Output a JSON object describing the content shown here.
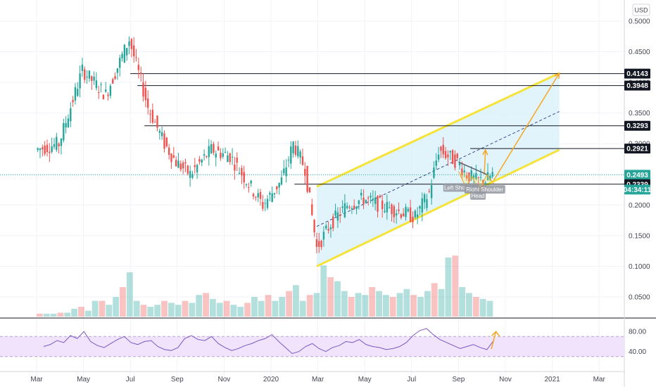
{
  "chart_data": {
    "type": "candlestick",
    "currency": "USD",
    "y_axis": {
      "min": 0.0,
      "max": 0.53,
      "ticks": [
        "0.5000",
        "0.4500",
        "0.4000",
        "0.3500",
        "0.3000",
        "0.2500",
        "0.2000",
        "0.1500",
        "0.1000",
        "0.0500"
      ],
      "tick_values": [
        0.5,
        0.45,
        0.4,
        0.35,
        0.3,
        0.25,
        0.2,
        0.15,
        0.1,
        0.05
      ]
    },
    "x_axis": {
      "labels": [
        "Mar",
        "May",
        "Jul",
        "Sep",
        "Nov",
        "2020",
        "Mar",
        "May",
        "Jul",
        "Sep",
        "Nov",
        "2021",
        "Mar"
      ],
      "label_months": [
        0,
        2,
        4,
        6,
        8,
        10,
        12,
        14,
        16,
        18,
        20,
        22,
        24
      ]
    },
    "price_path": [
      [
        0,
        0.29
      ],
      [
        1,
        0.3
      ],
      [
        2,
        0.42
      ],
      [
        3,
        0.38
      ],
      [
        4,
        0.47
      ],
      [
        4.8,
        0.36
      ],
      [
        5.5,
        0.3
      ],
      [
        6,
        0.27
      ],
      [
        6.6,
        0.25
      ],
      [
        7.5,
        0.29
      ],
      [
        8.3,
        0.28
      ],
      [
        9,
        0.24
      ],
      [
        9.7,
        0.2
      ],
      [
        10.5,
        0.24
      ],
      [
        11,
        0.3
      ],
      [
        11.5,
        0.26
      ],
      [
        12,
        0.13
      ],
      [
        12.6,
        0.17
      ],
      [
        13.3,
        0.2
      ],
      [
        14,
        0.21
      ],
      [
        14.7,
        0.2
      ],
      [
        15.5,
        0.19
      ],
      [
        16.2,
        0.18
      ],
      [
        16.8,
        0.22
      ],
      [
        17.2,
        0.29
      ],
      [
        17.6,
        0.28
      ],
      [
        18,
        0.27
      ],
      [
        18.4,
        0.25
      ],
      [
        18.8,
        0.24
      ],
      [
        19.2,
        0.24
      ],
      [
        19.5,
        0.25
      ]
    ],
    "volume": {
      "max": 0.5,
      "values": [
        3,
        3,
        3,
        4,
        4,
        8,
        10,
        6,
        16,
        16,
        12,
        20,
        30,
        45,
        16,
        12,
        10,
        12,
        16,
        14,
        12,
        16,
        14,
        22,
        24,
        18,
        14,
        16,
        12,
        10,
        14,
        20,
        16,
        22,
        16,
        20,
        26,
        32,
        16,
        22,
        24,
        52,
        40,
        36,
        26,
        20,
        24,
        22,
        30,
        26,
        22,
        20,
        24,
        28,
        22,
        20,
        26,
        34,
        28,
        60,
        62,
        30,
        24,
        20,
        18,
        16
      ]
    },
    "levels": [
      {
        "value": 0.4143,
        "label": "0.4143",
        "color": "#131722"
      },
      {
        "value": 0.3948,
        "label": "0.3948",
        "color": "#131722"
      },
      {
        "value": 0.3293,
        "label": "0.3293",
        "color": "#131722"
      },
      {
        "value": 0.2921,
        "label": "0.2921",
        "color": "#131722"
      },
      {
        "value": 0.2493,
        "label": "0.2493",
        "color": "#26a69a"
      },
      {
        "value": 0.2339,
        "label": "0.2339",
        "color": "#131722"
      }
    ],
    "countdown": {
      "label": "04:34:11",
      "color": "#26a69a"
    },
    "channel": {
      "upper": [
        [
          11.95,
          0.23
        ],
        [
          22.3,
          0.415
        ]
      ],
      "lower": [
        [
          11.95,
          0.1
        ],
        [
          22.3,
          0.29
        ]
      ],
      "color": "#f5e33a",
      "fill": "#d9f1fb"
    },
    "targets": [
      {
        "from": [
          19.5,
          0.24
        ],
        "to": [
          22.3,
          0.415
        ],
        "color": "#f5a623"
      },
      {
        "from": [
          19.1,
          0.25
        ],
        "to": [
          19.15,
          0.29
        ],
        "color": "#f5a623"
      }
    ],
    "pattern_labels": [
      "Left Shoulder",
      "Right Shoulder",
      "Head"
    ],
    "rsi": {
      "ticks": [
        "80.00",
        "40.00"
      ],
      "tick_values": [
        80,
        40
      ],
      "band": [
        30,
        70
      ],
      "values": [
        50,
        54,
        62,
        58,
        72,
        66,
        80,
        60,
        52,
        48,
        56,
        64,
        70,
        58,
        54,
        60,
        62,
        50,
        44,
        42,
        48,
        66,
        72,
        64,
        62,
        70,
        56,
        48,
        42,
        46,
        52,
        56,
        62,
        66,
        74,
        60,
        48,
        36,
        40,
        50,
        56,
        46,
        40,
        48,
        52,
        60,
        58,
        64,
        54,
        50,
        48,
        44,
        46,
        50,
        58,
        72,
        82,
        86,
        74,
        64,
        58,
        52,
        46,
        50,
        54,
        48,
        44,
        62
      ],
      "color": "#7e57c2",
      "band_fill": "#f0e3fb"
    },
    "colors": {
      "up": "#26a69a",
      "down": "#ef5350",
      "grid": "#f0f3fa",
      "axis": "#787b86"
    }
  }
}
